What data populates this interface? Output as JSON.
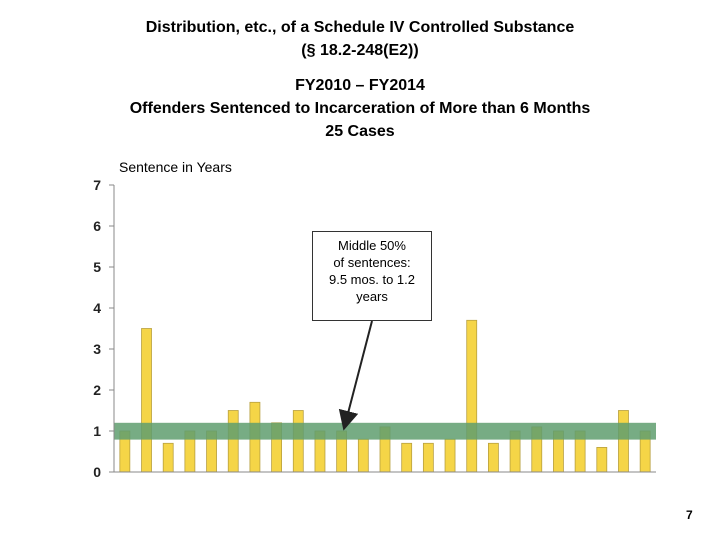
{
  "title": {
    "line1": "Distribution, etc., of a Schedule IV Controlled Substance",
    "line2": "(§ 18.2-248(E2))",
    "line3": "FY2010 – FY2014",
    "line4": "Offenders Sentenced to Incarceration of More than 6 Months",
    "line5": "25 Cases"
  },
  "callout": {
    "line1": "Middle 50%",
    "line2": "of sentences:",
    "line3": "9.5 mos. to 1.2",
    "line4": "years"
  },
  "page_number": "7",
  "chart_data": {
    "type": "bar",
    "ylabel": "Sentence in Years",
    "ylim": [
      0,
      7
    ],
    "yticks": [
      "0",
      "1",
      "2",
      "3",
      "4",
      "5",
      "6",
      "7"
    ],
    "values": [
      1,
      3.5,
      0.7,
      1,
      1,
      1.5,
      1.7,
      1.2,
      1.5,
      1,
      1,
      0.8,
      1.1,
      0.7,
      0.7,
      0.8,
      3.7,
      0.7,
      1,
      1.1,
      1,
      1,
      0.6,
      1.5,
      1
    ],
    "band": [
      0.79,
      1.2
    ],
    "colors": {
      "bar": "#f5d547",
      "bar_edge": "#b8a040",
      "band": "#5f9e6e",
      "axis": "#888888"
    }
  }
}
